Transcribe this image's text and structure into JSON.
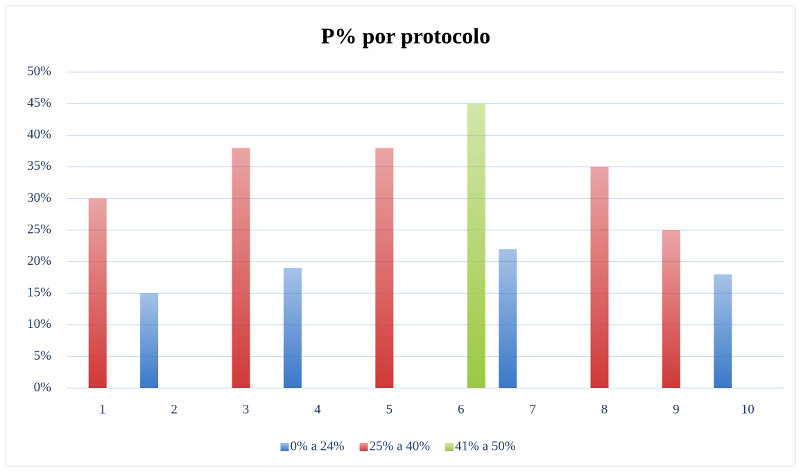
{
  "chart_data": {
    "type": "bar",
    "title": "P% por protocolo",
    "categories": [
      "1",
      "2",
      "3",
      "4",
      "5",
      "6",
      "7",
      "8",
      "9",
      "10"
    ],
    "series": [
      {
        "name": "0% a 24%",
        "color": "#3a78c9",
        "values": [
          null,
          15,
          null,
          19,
          null,
          null,
          22,
          null,
          null,
          18
        ]
      },
      {
        "name": "25% a 40%",
        "color": "#d03838",
        "values": [
          30,
          null,
          38,
          null,
          38,
          null,
          null,
          35,
          25,
          null
        ]
      },
      {
        "name": "41% a 50%",
        "color": "#9cc842",
        "values": [
          null,
          null,
          null,
          null,
          null,
          45,
          null,
          null,
          null,
          null
        ]
      }
    ],
    "ylim": [
      0,
      50
    ],
    "yticks": [
      {
        "value": 0,
        "label": "0%"
      },
      {
        "value": 5,
        "label": "5%"
      },
      {
        "value": 10,
        "label": "10%"
      },
      {
        "value": 15,
        "label": "15%"
      },
      {
        "value": 20,
        "label": "20%"
      },
      {
        "value": 25,
        "label": "25%"
      },
      {
        "value": 30,
        "label": "30%"
      },
      {
        "value": 35,
        "label": "35%"
      },
      {
        "value": 40,
        "label": "40%"
      },
      {
        "value": 45,
        "label": "45%"
      },
      {
        "value": 50,
        "label": "50%"
      }
    ],
    "grid": true,
    "legend": "bottom"
  }
}
